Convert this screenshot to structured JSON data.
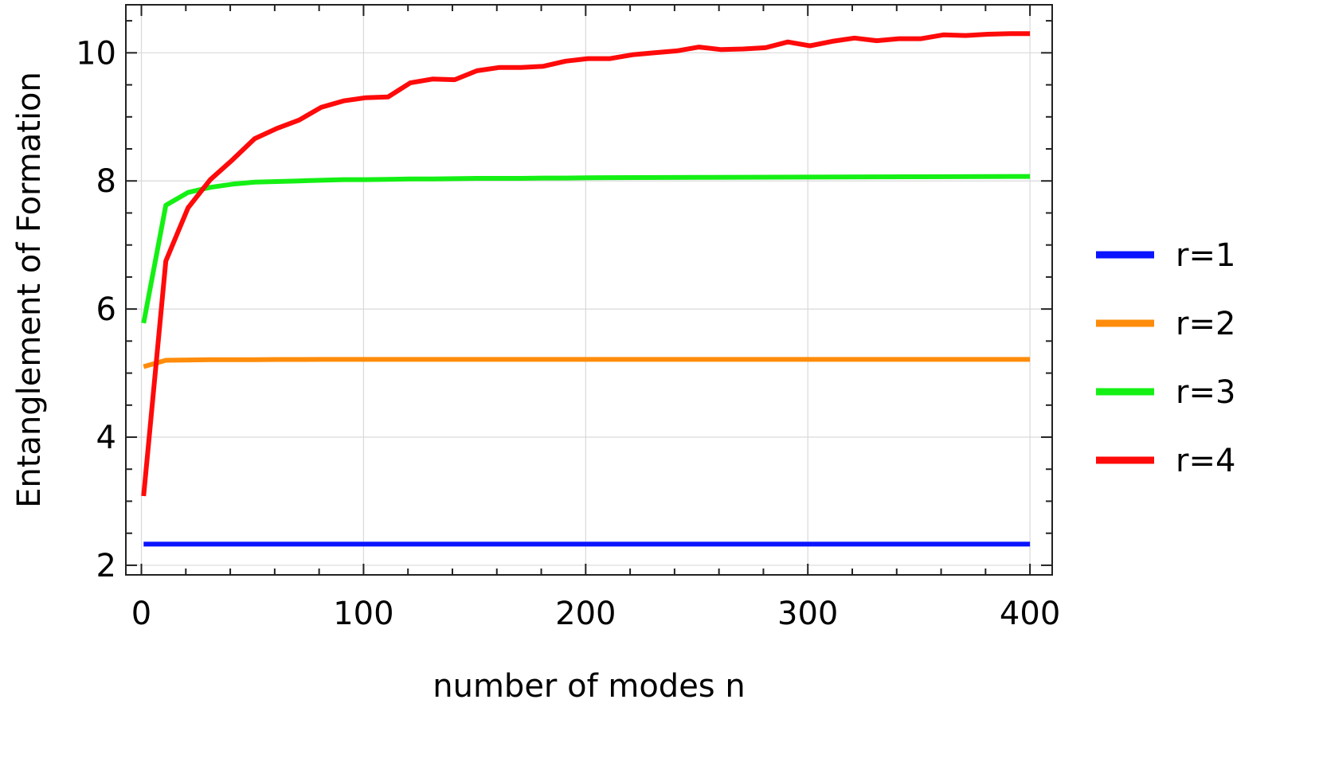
{
  "chart_data": {
    "type": "line",
    "title": "",
    "xlabel": "number of modes n",
    "ylabel": "Entanglement of Formation",
    "xlim": [
      -7,
      410
    ],
    "ylim": [
      1.85,
      10.75
    ],
    "x_ticks": [
      0,
      100,
      200,
      300,
      400
    ],
    "y_ticks": [
      2,
      4,
      6,
      8,
      10
    ],
    "grid": true,
    "legend_position": "right",
    "series": [
      {
        "name": "r=1",
        "color": "#0a14ff",
        "x": [
          1,
          400
        ],
        "y": [
          2.33,
          2.33
        ]
      },
      {
        "name": "r=2",
        "color": "#ff8c0a",
        "x": [
          1,
          11,
          21,
          31,
          41,
          51,
          61,
          71,
          81,
          91,
          101,
          200,
          300,
          400
        ],
        "y": [
          5.1,
          5.2,
          5.205,
          5.21,
          5.21,
          5.21,
          5.212,
          5.212,
          5.213,
          5.213,
          5.213,
          5.213,
          5.213,
          5.213
        ]
      },
      {
        "name": "r=3",
        "color": "#14f014",
        "x": [
          1,
          11,
          21,
          31,
          41,
          51,
          61,
          71,
          81,
          91,
          101,
          111,
          121,
          131,
          141,
          151,
          161,
          171,
          181,
          191,
          201,
          251,
          301,
          351,
          400
        ],
        "y": [
          5.78,
          7.62,
          7.82,
          7.9,
          7.95,
          7.98,
          7.99,
          8.0,
          8.01,
          8.02,
          8.02,
          8.025,
          8.03,
          8.03,
          8.035,
          8.04,
          8.04,
          8.04,
          8.045,
          8.045,
          8.05,
          8.055,
          8.06,
          8.065,
          8.07
        ]
      },
      {
        "name": "r=4",
        "color": "#ff0a0a",
        "x": [
          1,
          11,
          21,
          31,
          41,
          51,
          61,
          71,
          81,
          91,
          101,
          111,
          121,
          131,
          141,
          151,
          161,
          171,
          181,
          191,
          201,
          211,
          221,
          231,
          241,
          251,
          261,
          271,
          281,
          291,
          301,
          311,
          321,
          331,
          341,
          351,
          361,
          371,
          381,
          391,
          400
        ],
        "y": [
          3.08,
          6.75,
          7.58,
          8.02,
          8.33,
          8.66,
          8.82,
          8.95,
          9.15,
          9.25,
          9.3,
          9.31,
          9.53,
          9.59,
          9.58,
          9.72,
          9.77,
          9.77,
          9.79,
          9.87,
          9.91,
          9.91,
          9.97,
          10.0,
          10.03,
          10.09,
          10.05,
          10.06,
          10.08,
          10.17,
          10.11,
          10.18,
          10.23,
          10.19,
          10.22,
          10.22,
          10.28,
          10.27,
          10.29,
          10.3,
          10.3
        ]
      }
    ]
  }
}
